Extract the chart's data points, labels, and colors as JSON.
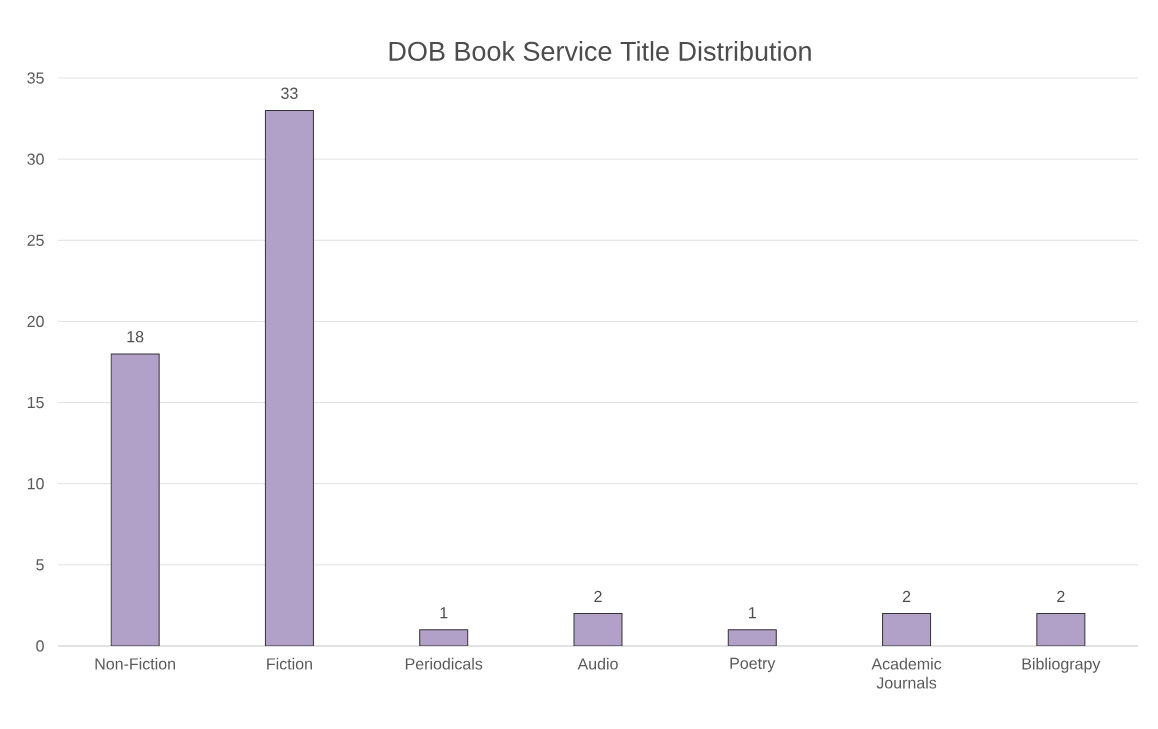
{
  "chart_data": {
    "type": "bar",
    "title": "DOB Book Service Title Distribution",
    "categories": [
      "Non-Fiction",
      "Fiction",
      "Periodicals",
      "Audio",
      "Poetry",
      "Academic Journals",
      "Bibliograpy"
    ],
    "values": [
      18,
      33,
      1,
      2,
      1,
      2,
      2
    ],
    "color": "#b1a0c7",
    "ylim": [
      0,
      35
    ],
    "yticks": [
      0,
      5,
      10,
      15,
      20,
      25,
      30,
      35
    ],
    "grid": "y",
    "data_labels": true
  }
}
